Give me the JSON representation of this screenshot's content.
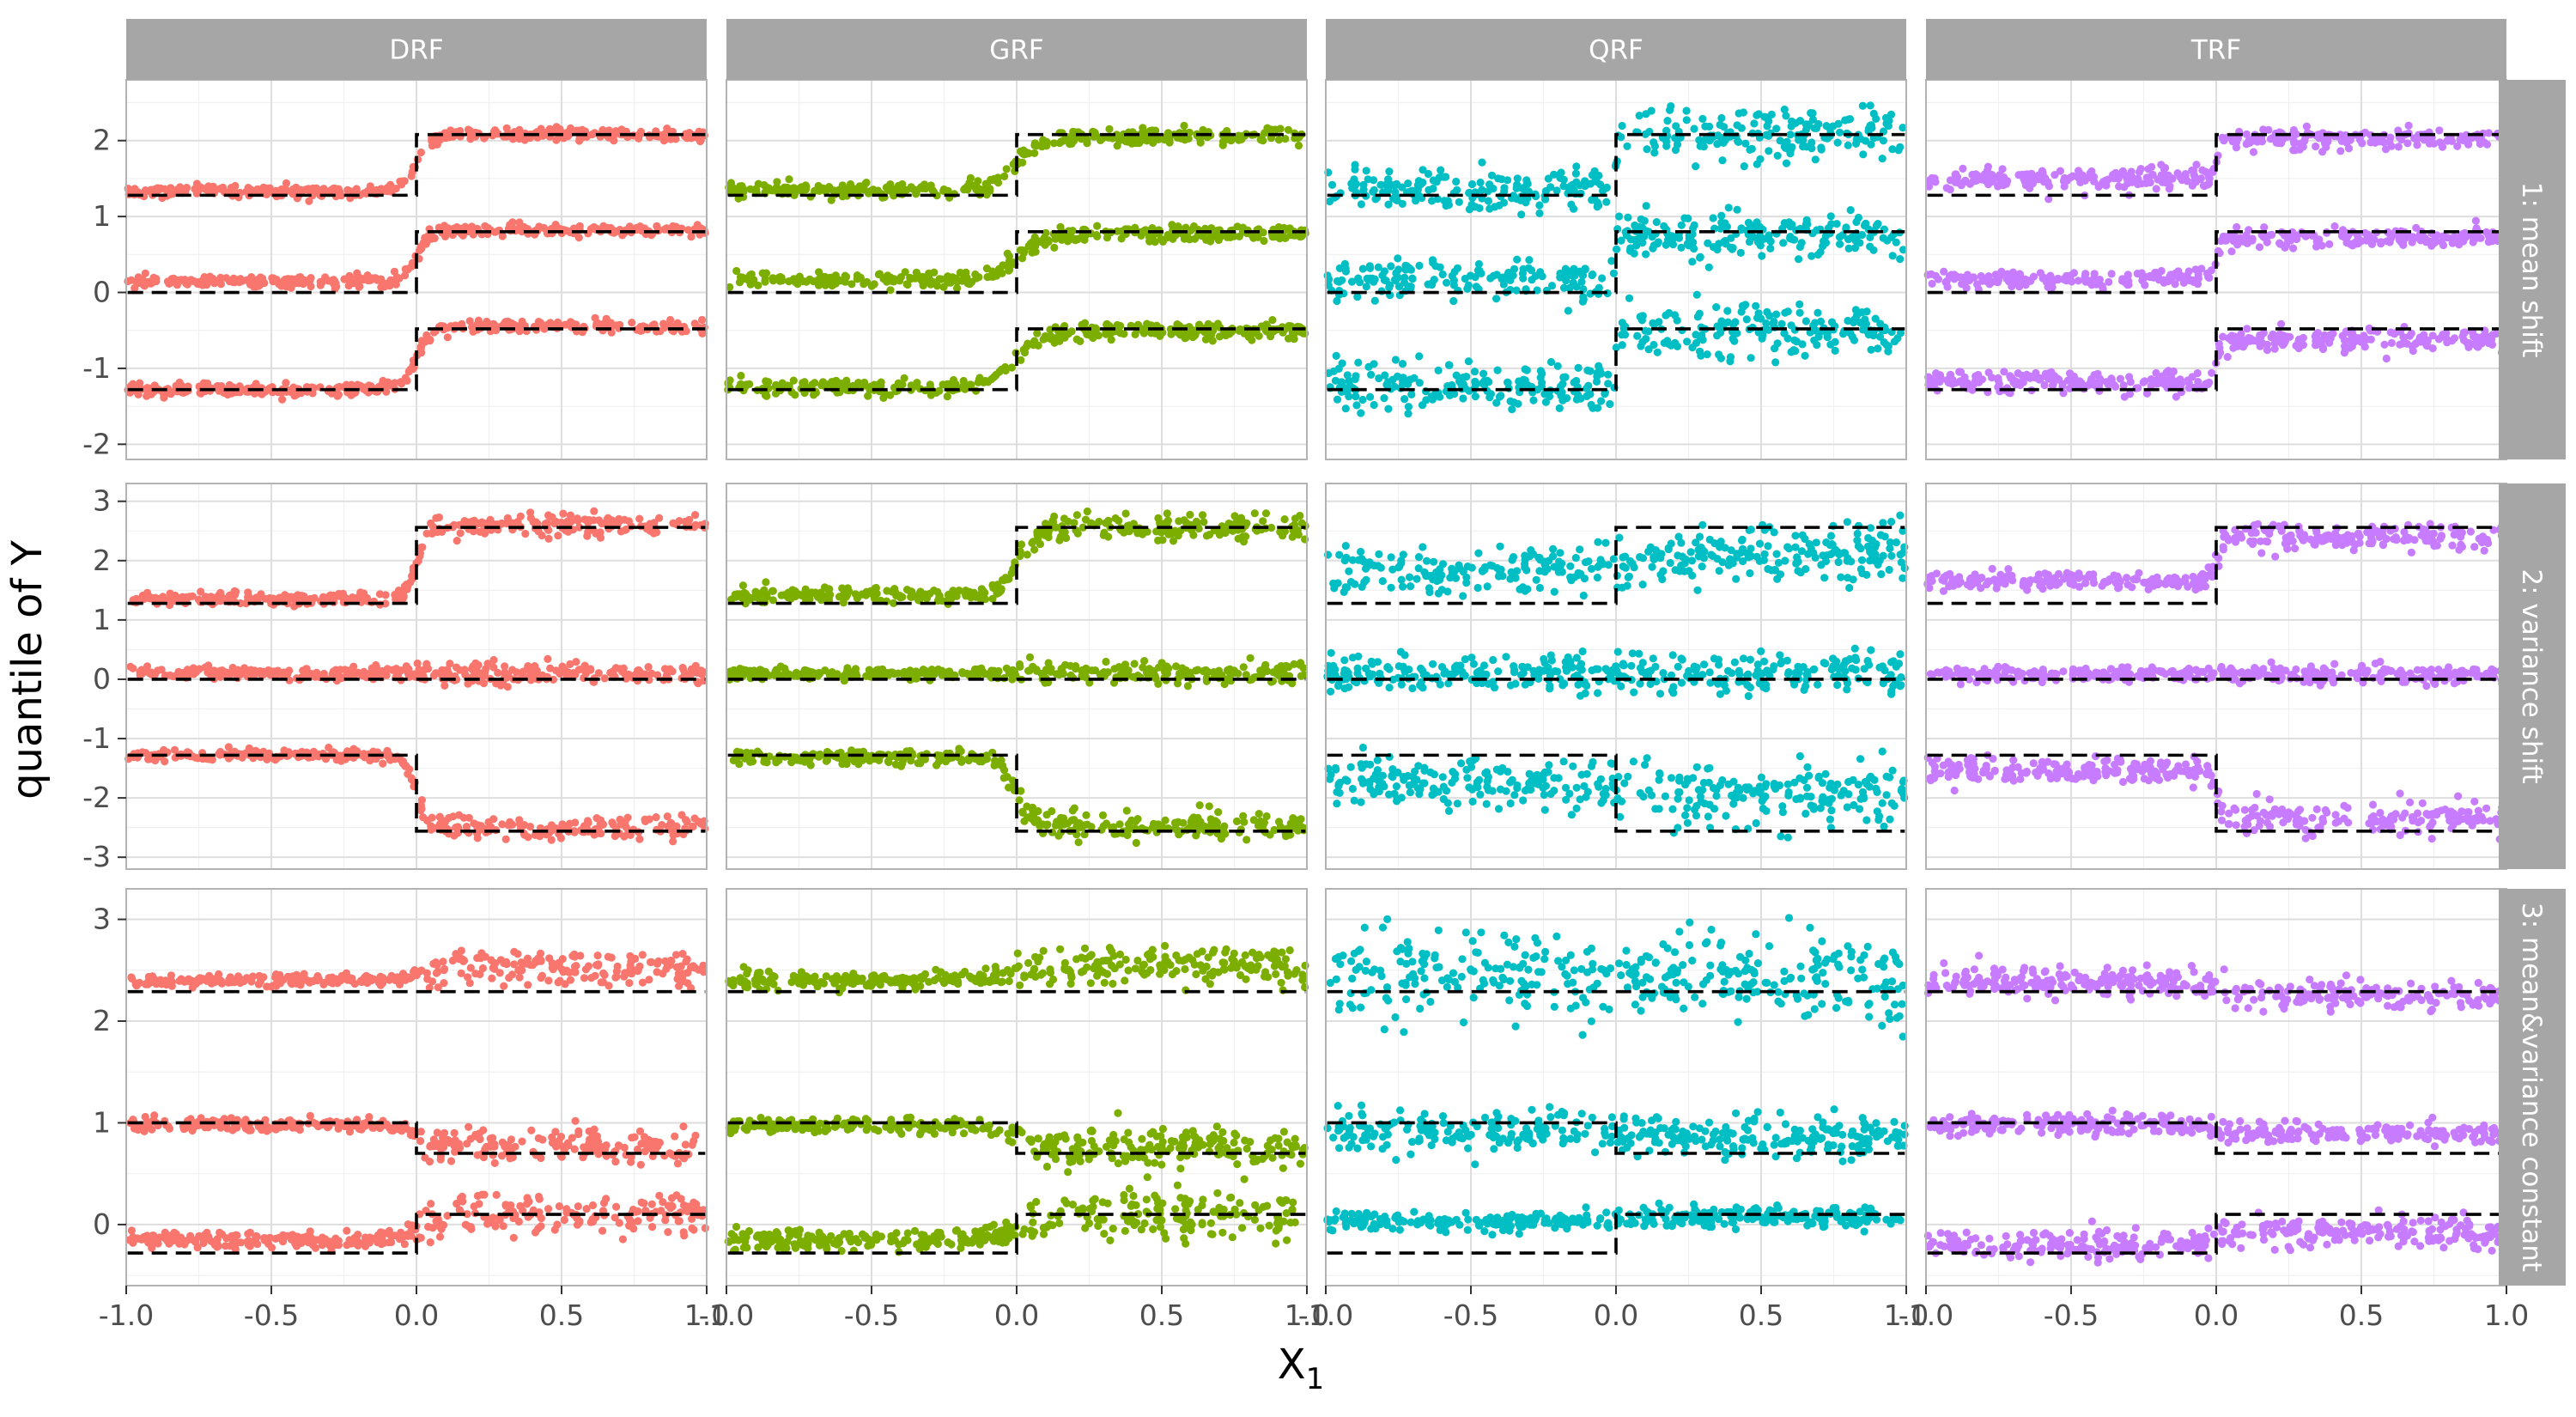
{
  "chart_data": {
    "type": "scatter",
    "xlabel": "X",
    "xlabel_subscript": "1",
    "ylabel": "quantile of Y",
    "xlim": [
      -1.0,
      1.0
    ],
    "x_ticks": [
      -1.0,
      -0.5,
      0.0,
      0.5,
      1.0
    ],
    "x_tick_labels": [
      "-1.0",
      "-0.5",
      "0.0",
      "0.5",
      "1.0"
    ],
    "methods": [
      "DRF",
      "GRF",
      "QRF",
      "TRF"
    ],
    "colors": {
      "DRF": "#F8766D",
      "GRF": "#7CAE00",
      "QRF": "#00BFC4",
      "TRF": "#C77CFF",
      "truth": "#000000",
      "strip": "#A6A6A6"
    },
    "rows": [
      {
        "label": "1: mean shift",
        "ylim": [
          -2.2,
          2.8
        ],
        "y_ticks": [
          -2,
          -1,
          0,
          1,
          2
        ],
        "y_tick_labels": [
          "-2",
          "-1",
          "0",
          "1",
          "2"
        ],
        "true_quantiles": [
          {
            "left": 1.28,
            "right": 2.08
          },
          {
            "left": 0.0,
            "right": 0.8
          },
          {
            "left": -1.28,
            "right": -0.48
          }
        ],
        "estimates": {
          "DRF": {
            "curves": [
              {
                "left": 1.33,
                "right": 2.08,
                "noise": 0.04
              },
              {
                "left": 0.15,
                "right": 0.82,
                "noise": 0.04
              },
              {
                "left": -1.28,
                "right": -0.45,
                "noise": 0.04
              }
            ],
            "sharp": 0.025,
            "noise_right_mult": 1.0
          },
          "GRF": {
            "curves": [
              {
                "left": 1.35,
                "right": 2.05,
                "noise": 0.05
              },
              {
                "left": 0.17,
                "right": 0.78,
                "noise": 0.05
              },
              {
                "left": -1.25,
                "right": -0.5,
                "noise": 0.05
              }
            ],
            "sharp": 0.05,
            "noise_right_mult": 1.0
          },
          "QRF": {
            "curves": [
              {
                "left": 1.35,
                "right": 2.08,
                "noise": 0.14
              },
              {
                "left": 0.18,
                "right": 0.75,
                "noise": 0.13
              },
              {
                "left": -1.25,
                "right": -0.5,
                "noise": 0.15
              }
            ],
            "sharp": 0.003,
            "noise_right_mult": 1.1
          },
          "TRF": {
            "curves": [
              {
                "left": 1.5,
                "right": 2.02,
                "noise": 0.07
              },
              {
                "left": 0.18,
                "right": 0.72,
                "noise": 0.06
              },
              {
                "left": -1.18,
                "right": -0.62,
                "noise": 0.07
              }
            ],
            "sharp": 0.01,
            "noise_right_mult": 1.0
          }
        }
      },
      {
        "label": "2: variance shift",
        "ylim": [
          -3.2,
          3.3
        ],
        "y_ticks": [
          -3,
          -2,
          -1,
          0,
          1,
          2,
          3
        ],
        "y_tick_labels": [
          "-3",
          "-2",
          "-1",
          "0",
          "1",
          "2",
          "3"
        ],
        "true_quantiles": [
          {
            "left": 1.28,
            "right": 2.56
          },
          {
            "left": 0.0,
            "right": 0.0
          },
          {
            "left": -1.28,
            "right": -2.56
          }
        ],
        "estimates": {
          "DRF": {
            "curves": [
              {
                "left": 1.35,
                "right": 2.6,
                "noise": 0.05
              },
              {
                "left": 0.1,
                "right": 0.1,
                "noise": 0.05
              },
              {
                "left": -1.28,
                "right": -2.5,
                "noise": 0.05
              }
            ],
            "sharp": 0.02,
            "noise_right_mult": 1.8
          },
          "GRF": {
            "curves": [
              {
                "left": 1.42,
                "right": 2.55,
                "noise": 0.06
              },
              {
                "left": 0.1,
                "right": 0.1,
                "noise": 0.05
              },
              {
                "left": -1.32,
                "right": -2.48,
                "noise": 0.06
              }
            ],
            "sharp": 0.03,
            "noise_right_mult": 1.8
          },
          "QRF": {
            "curves": [
              {
                "left": 1.8,
                "right": 2.15,
                "noise": 0.2
              },
              {
                "left": 0.1,
                "right": 0.1,
                "noise": 0.15
              },
              {
                "left": -1.7,
                "right": -2.0,
                "noise": 0.22
              }
            ],
            "sharp": 0.3,
            "noise_right_mult": 1.2
          },
          "TRF": {
            "curves": [
              {
                "left": 1.65,
                "right": 2.4,
                "noise": 0.08
              },
              {
                "left": 0.08,
                "right": 0.08,
                "noise": 0.06
              },
              {
                "left": -1.55,
                "right": -2.35,
                "noise": 0.1
              }
            ],
            "sharp": 0.01,
            "noise_right_mult": 1.3
          }
        }
      },
      {
        "label": "3: mean&variance constant",
        "ylim": [
          -0.6,
          3.3
        ],
        "y_ticks": [
          0,
          1,
          2,
          3
        ],
        "y_tick_labels": [
          "0",
          "1",
          "2",
          "3"
        ],
        "true_quantiles": [
          {
            "left": 2.29,
            "right": 2.29
          },
          {
            "left": 1.0,
            "right": 0.7
          },
          {
            "left": -0.28,
            "right": 0.1
          }
        ],
        "estimates": {
          "DRF": {
            "curves": [
              {
                "left": 2.4,
                "right": 2.52,
                "noise": 0.03
              },
              {
                "left": 0.98,
                "right": 0.77,
                "noise": 0.03
              },
              {
                "left": -0.15,
                "right": 0.1,
                "noise": 0.04
              }
            ],
            "sharp": 0.03,
            "noise_right_mult": 2.6
          },
          "GRF": {
            "curves": [
              {
                "left": 2.4,
                "right": 2.55,
                "noise": 0.04
              },
              {
                "left": 0.97,
                "right": 0.75,
                "noise": 0.04
              },
              {
                "left": -0.15,
                "right": 0.1,
                "noise": 0.05
              }
            ],
            "sharp": 0.04,
            "noise_right_mult": 2.4
          },
          "QRF": {
            "curves": [
              {
                "left": 2.45,
                "right": 2.45,
                "noise": 0.2
              },
              {
                "left": 0.92,
                "right": 0.85,
                "noise": 0.1
              },
              {
                "left": 0.03,
                "right": 0.07,
                "noise": 0.05
              }
            ],
            "sharp": 0.1,
            "noise_right_mult": 1.0
          },
          "TRF": {
            "curves": [
              {
                "left": 2.38,
                "right": 2.25,
                "noise": 0.07
              },
              {
                "left": 0.98,
                "right": 0.9,
                "noise": 0.05
              },
              {
                "left": -0.2,
                "right": -0.08,
                "noise": 0.07
              }
            ],
            "sharp": 0.02,
            "noise_right_mult": 1.0
          }
        }
      }
    ]
  }
}
